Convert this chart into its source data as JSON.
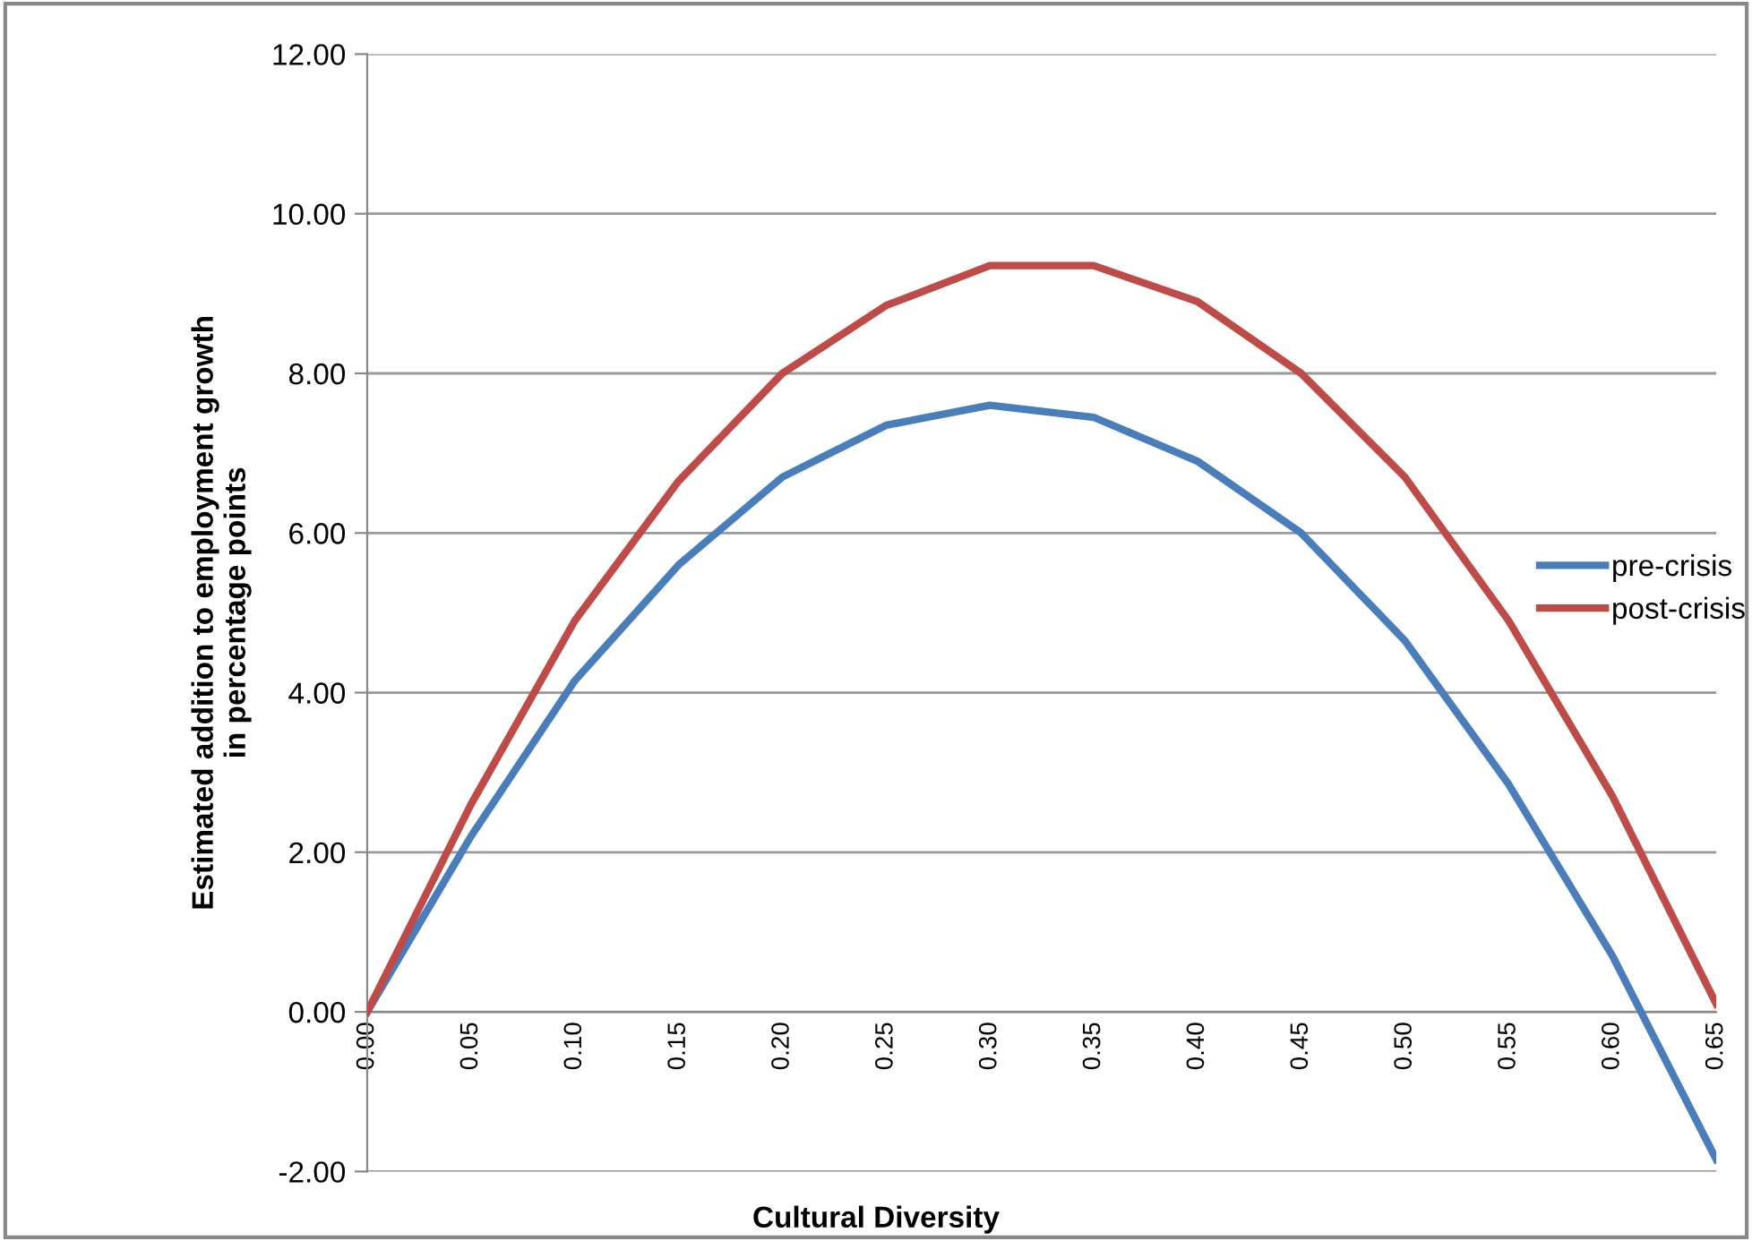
{
  "chart_data": {
    "type": "line",
    "xlabel": "Cultural Diversity",
    "ylabel": "Estimated addition to employment growth\nin percentage points",
    "categories": [
      "0.00",
      "0.05",
      "0.10",
      "0.15",
      "0.20",
      "0.25",
      "0.30",
      "0.35",
      "0.40",
      "0.45",
      "0.50",
      "0.55",
      "0.60",
      "0.65"
    ],
    "series": [
      {
        "name": "pre-crisis",
        "color": "#4a7ebb",
        "values": [
          0,
          2.2,
          4.15,
          5.6,
          6.7,
          7.35,
          7.6,
          7.45,
          6.9,
          6.0,
          4.65,
          2.85,
          0.7,
          -1.85
        ]
      },
      {
        "name": "post-crisis",
        "color": "#be4b48",
        "values": [
          0,
          2.6,
          4.9,
          6.65,
          8.0,
          8.85,
          9.35,
          9.35,
          8.9,
          8.0,
          6.7,
          4.9,
          2.7,
          0.1
        ]
      }
    ],
    "ylim": [
      -2,
      12
    ],
    "yticks": [
      {
        "value": -2,
        "label": "-2.00"
      },
      {
        "value": 0,
        "label": "0.00"
      },
      {
        "value": 2,
        "label": "2.00"
      },
      {
        "value": 4,
        "label": "4.00"
      },
      {
        "value": 6,
        "label": "6.00"
      },
      {
        "value": 8,
        "label": "8.00"
      },
      {
        "value": 10,
        "label": "10.00"
      },
      {
        "value": 12,
        "label": "12.00"
      }
    ],
    "grid": "y",
    "legend": "right",
    "marker": "none",
    "line_style": "solid"
  }
}
